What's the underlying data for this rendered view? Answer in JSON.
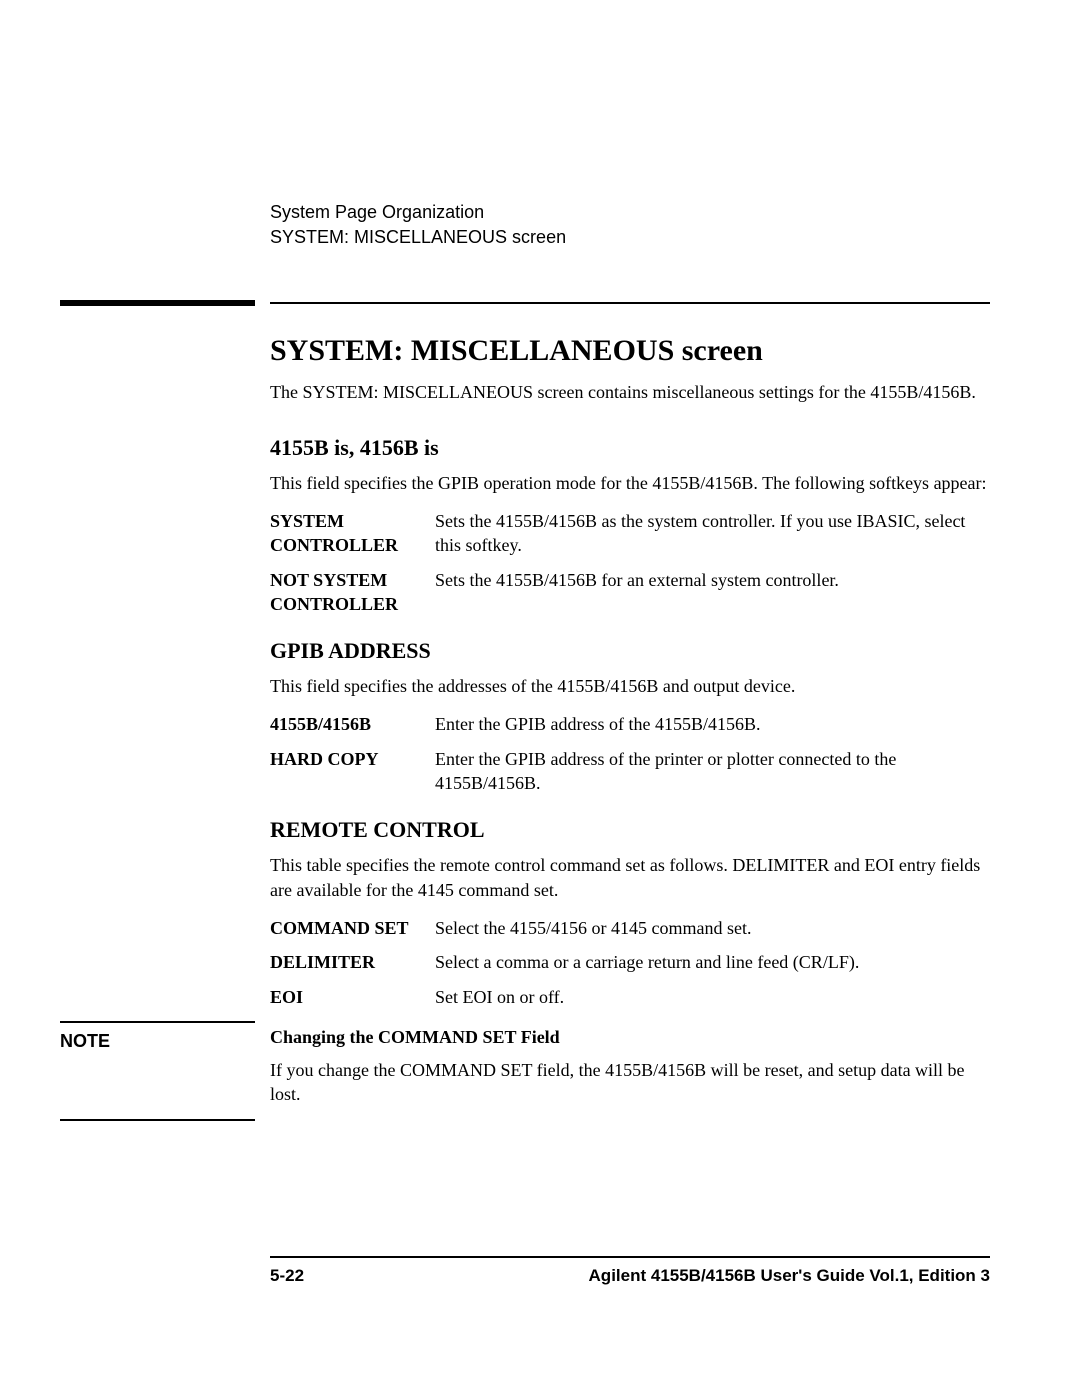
{
  "header": {
    "line1": "System Page Organization",
    "line2": "SYSTEM: MISCELLANEOUS screen"
  },
  "title": "SYSTEM: MISCELLANEOUS screen",
  "intro": "The SYSTEM: MISCELLANEOUS screen contains miscellaneous settings for the 4155B/4156B.",
  "section1": {
    "title": "4155B is, 4156B is",
    "body": "This field specifies the GPIB operation mode for the 4155B/4156B. The following softkeys appear:",
    "items": [
      {
        "term1": "SYSTEM",
        "term2": "CONTROLLER",
        "desc": "Sets the 4155B/4156B as the system controller. If you use IBASIC, select this softkey."
      },
      {
        "term1": "NOT SYSTEM",
        "term2": "CONTROLLER",
        "desc": "Sets the 4155B/4156B for an external system controller."
      }
    ]
  },
  "section2": {
    "title": "GPIB ADDRESS",
    "body": "This field specifies the addresses of the 4155B/4156B and output device.",
    "items": [
      {
        "term": "4155B/4156B",
        "desc": "Enter the GPIB address of the 4155B/4156B."
      },
      {
        "term": "HARD COPY",
        "desc": "Enter the GPIB address of the printer or plotter connected to the 4155B/4156B."
      }
    ]
  },
  "section3": {
    "title": "REMOTE CONTROL",
    "body": "This table specifies the remote control command set as follows. DELIMITER and EOI entry fields are available for the 4145 command set.",
    "items": [
      {
        "term": "COMMAND SET",
        "desc": "Select the 4155/4156 or 4145 command set."
      },
      {
        "term": "DELIMITER",
        "desc": "Select a comma or a carriage return and line feed (CR/LF)."
      },
      {
        "term": "EOI",
        "desc": "Set EOI on or off."
      }
    ]
  },
  "note": {
    "label": "NOTE",
    "title": "Changing the COMMAND SET Field",
    "body": "If you change the COMMAND SET field, the 4155B/4156B will be reset, and setup data will be lost."
  },
  "footer": {
    "left": "5-22",
    "right": "Agilent 4155B/4156B User's Guide Vol.1, Edition 3"
  }
}
